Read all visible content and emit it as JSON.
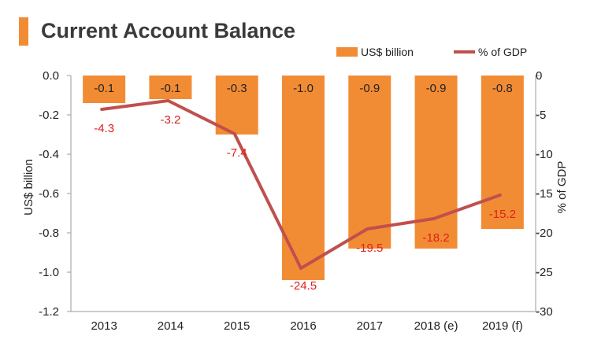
{
  "title": "Current Account Balance",
  "colors": {
    "accent": "#f28c34",
    "bar": "#f28c34",
    "line": "#c0504d",
    "line_label": "#e0201c",
    "title_bar": "#f28c34"
  },
  "chart_data": {
    "type": "bar",
    "title": "Current Account Balance",
    "categories": [
      "2013",
      "2014",
      "2015",
      "2016",
      "2017",
      "2018 (e)",
      "2019 (f)"
    ],
    "series": [
      {
        "name": "US$ billion",
        "type": "bar",
        "axis": "left",
        "values": [
          -0.1,
          -0.1,
          -0.3,
          -1.0,
          -0.9,
          -0.9,
          -0.8
        ],
        "bar_extent": [
          -0.14,
          -0.12,
          -0.3,
          -1.04,
          -0.88,
          -0.88,
          -0.78
        ],
        "labels": [
          "-0.1",
          "-0.1",
          "-0.3",
          "-1.0",
          "-0.9",
          "-0.9",
          "-0.8"
        ]
      },
      {
        "name": "% of GDP",
        "type": "line",
        "axis": "right",
        "values": [
          -4.3,
          -3.2,
          -7.4,
          -24.5,
          -19.5,
          -18.2,
          -15.2
        ],
        "labels": [
          "-4.3",
          "-3.2",
          "-7.4",
          "-24.5",
          "-19.5",
          "-18.2",
          "-15.2"
        ]
      }
    ],
    "ylabel": "US$ billion",
    "y2label": "% of GDP",
    "ylim": [
      -1.2,
      0.0
    ],
    "y2lim": [
      -30,
      0
    ],
    "yticks": [
      "0.0",
      "-0.2",
      "-0.4",
      "-0.6",
      "-0.8",
      "-1.0",
      "-1.2"
    ],
    "y2ticks": [
      "0",
      "-5",
      "-10",
      "-15",
      "-20",
      "-25",
      "-30"
    ],
    "grid": false,
    "legend_position": "top-right"
  }
}
